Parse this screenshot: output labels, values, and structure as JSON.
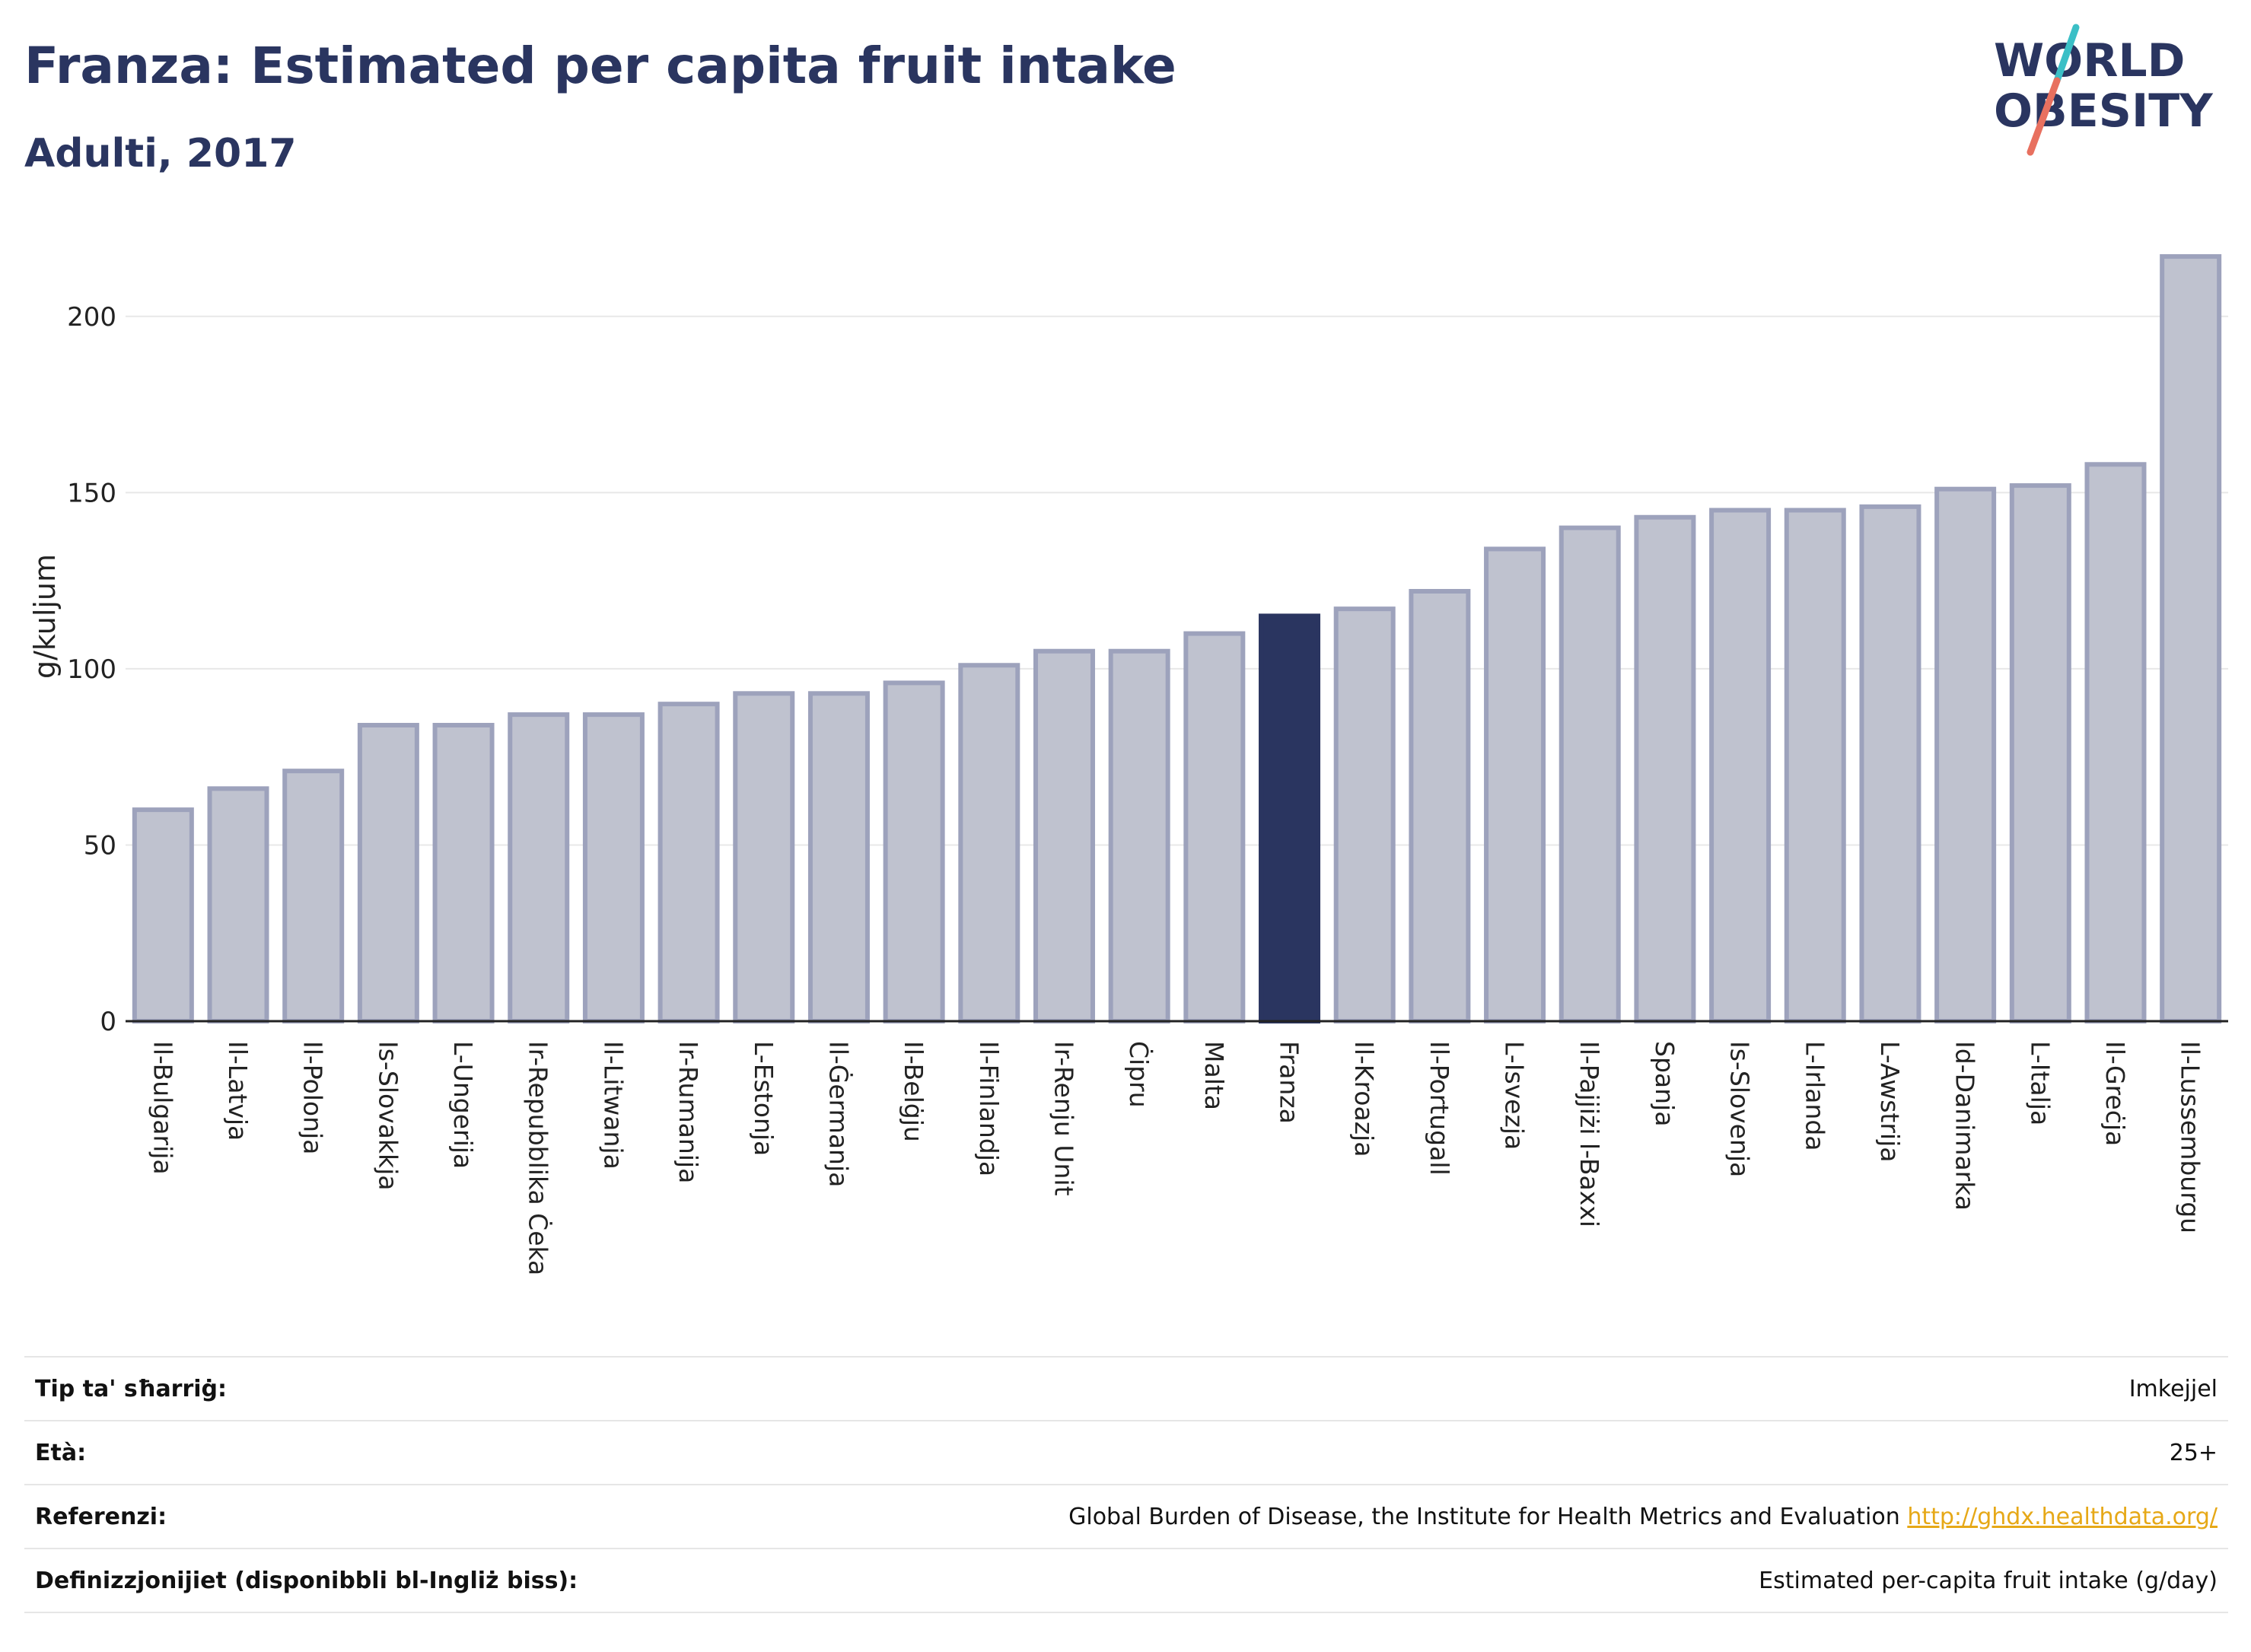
{
  "header": {
    "title": "Franza: Estimated per capita fruit intake",
    "subtitle": "Adulti, 2017"
  },
  "logo": {
    "line1": "WORLD",
    "line2": "OBESITY"
  },
  "colors": {
    "bar_default": "#bfc2cf",
    "bar_border": "#9da2bc",
    "bar_highlight": "#2a3560",
    "title": "#2a3560",
    "link": "#e6a817",
    "logo_slash_top": "#3bbfc6",
    "logo_slash_bottom": "#e8705f"
  },
  "chart_data": {
    "type": "bar",
    "ylabel": "g/kuljum",
    "xlabel": "",
    "ylim": [
      0,
      225
    ],
    "yticks": [
      0,
      50,
      100,
      150,
      200
    ],
    "grid": true,
    "highlight": "Franza",
    "categories": [
      "Il-Bulgarija",
      "Il-Latvja",
      "Il-Polonja",
      "Is-Slovakkja",
      "L-Ungerija",
      "Ir-Repubblika Ċeka",
      "Il-Litwanja",
      "Ir-Rumanija",
      "L-Estonja",
      "Il-Ġermanja",
      "Il-Belġju",
      "Il-Finlandja",
      "Ir-Renju Unit",
      "Ċipru",
      "Malta",
      "Franza",
      "Il-Kroazja",
      "Il-Portugall",
      "L-Isvezja",
      "Il-Pajjiżi l-Baxxi",
      "Spanja",
      "Is-Slovenja",
      "L-Irlanda",
      "L-Awstrija",
      "Id-Danimarka",
      "L-Italja",
      "Il-Greċja",
      "Il-Lussemburgu"
    ],
    "values": [
      60,
      66,
      71,
      84,
      84,
      87,
      87,
      90,
      93,
      93,
      96,
      101,
      105,
      105,
      110,
      115,
      117,
      122,
      134,
      140,
      143,
      145,
      145,
      146,
      151,
      152,
      158,
      217
    ]
  },
  "info": [
    {
      "label": "Tip ta' sħarriġ:",
      "value": "Imkejjel"
    },
    {
      "label": "Età:",
      "value": "25+"
    },
    {
      "label": "Referenzi:",
      "value": "Global Burden of Disease, the Institute for Health Metrics and Evaluation",
      "link": "http://ghdx.healthdata.org/"
    },
    {
      "label": "Definizzjonijiet (disponibbli bl-Ingliż biss):",
      "value": "Estimated per-capita fruit intake (g/day)"
    }
  ]
}
